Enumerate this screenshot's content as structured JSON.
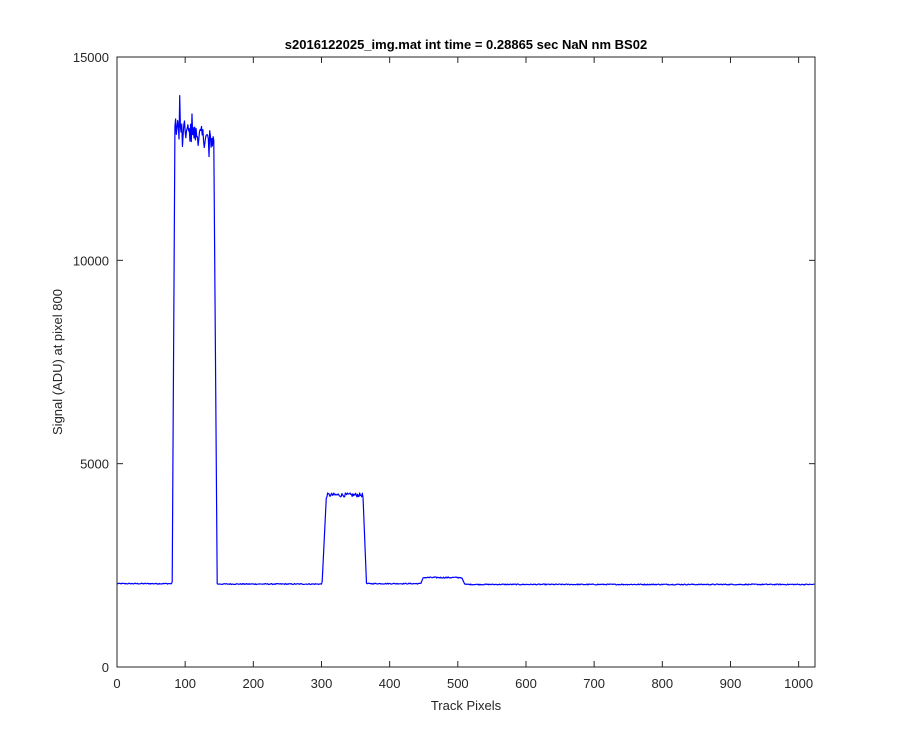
{
  "chart_data": {
    "type": "line",
    "title": "s2016122025_img.mat int time = 0.28865 sec  NaN nm BS02",
    "xlabel": "Track Pixels",
    "ylabel": "Signal (ADU) at pixel 800",
    "xlim": [
      0,
      1024
    ],
    "ylim": [
      0,
      15000
    ],
    "xticks": [
      0,
      100,
      200,
      300,
      400,
      500,
      600,
      700,
      800,
      900,
      1000
    ],
    "yticks": [
      0,
      5000,
      10000,
      15000
    ],
    "grid": false,
    "legend": "none",
    "line_color": "#0000ff",
    "series": [
      {
        "segments": [
          {
            "x": [
              0,
              80
            ],
            "level": 2050,
            "noise": 12
          },
          {
            "x": [
              81,
              85
            ],
            "ramp": [
              2100,
              13300
            ]
          },
          {
            "x": [
              86,
              141
            ],
            "level": 13250,
            "noise": 250,
            "trend_end": 12950
          },
          {
            "x": [
              142,
              147
            ],
            "ramp": [
              12950,
              2050
            ]
          },
          {
            "x": [
              148,
              300
            ],
            "level": 2040,
            "noise": 12
          },
          {
            "x": [
              301,
              307
            ],
            "ramp": [
              2100,
              4150
            ]
          },
          {
            "x": [
              308,
              360
            ],
            "level": 4230,
            "noise": 50
          },
          {
            "x": [
              361,
              366
            ],
            "ramp": [
              4150,
              2060
            ]
          },
          {
            "x": [
              367,
              445
            ],
            "level": 2050,
            "noise": 12
          },
          {
            "x": [
              446,
              449
            ],
            "ramp": [
              2060,
              2190
            ]
          },
          {
            "x": [
              450,
              505
            ],
            "level": 2200,
            "noise": 15
          },
          {
            "x": [
              506,
              510
            ],
            "ramp": [
              2190,
              2040
            ]
          },
          {
            "x": [
              511,
              1023
            ],
            "level": 2030,
            "noise": 12
          }
        ],
        "spikes": [
          {
            "x": 92,
            "y": 14050
          },
          {
            "x": 96,
            "y": 12800
          },
          {
            "x": 110,
            "y": 13600
          },
          {
            "x": 135,
            "y": 12550
          }
        ]
      }
    ]
  }
}
